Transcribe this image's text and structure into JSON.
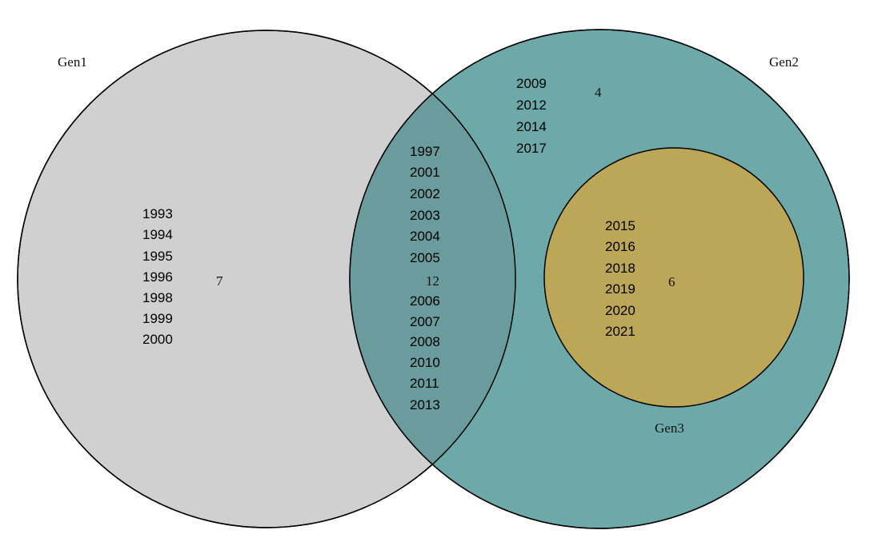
{
  "colors": {
    "gen1_fill": "#d0d0d0",
    "gen2_fill": "#6ea9aa",
    "overlap_fill": "#6a9c9d",
    "gen3_fill": "#bca657",
    "stroke": "#000000"
  },
  "sets": {
    "gen1": {
      "label": "Gen1"
    },
    "gen2": {
      "label": "Gen2"
    },
    "gen3": {
      "label": "Gen3"
    }
  },
  "regions": {
    "gen1_only": {
      "count": "7",
      "years": [
        "1993",
        "1994",
        "1995",
        "1996",
        "1998",
        "1999",
        "2000"
      ]
    },
    "gen1_gen2": {
      "count": "12",
      "years_upper": [
        "1997",
        "2001",
        "2002",
        "2003",
        "2004",
        "2005"
      ],
      "years_lower": [
        "2006",
        "2007",
        "2008",
        "2010",
        "2011",
        "2013"
      ]
    },
    "gen2_only": {
      "count": "4",
      "years": [
        "2009",
        "2012",
        "2014",
        "2017"
      ]
    },
    "gen3": {
      "count": "6",
      "years": [
        "2015",
        "2016",
        "2018",
        "2019",
        "2020",
        "2021"
      ]
    }
  }
}
